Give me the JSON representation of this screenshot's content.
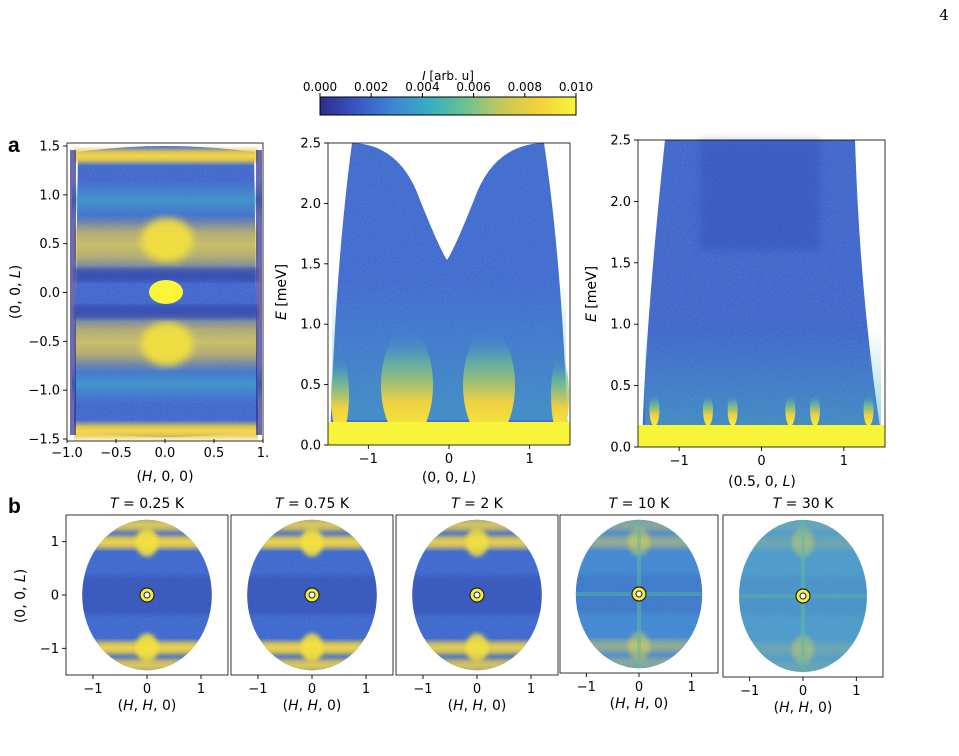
{
  "page_number": "4",
  "colorbar": {
    "label_var": "I",
    "label_rest": " [arb. u]",
    "ticks": [
      "0.000",
      "0.002",
      "0.004",
      "0.006",
      "0.008",
      "0.010"
    ],
    "range": [
      0,
      0.01
    ],
    "colormap": [
      "#2c2c8f",
      "#3a56c4",
      "#3d86d4",
      "#35aec2",
      "#6cc38e",
      "#c8c759",
      "#f2d23a",
      "#f8f43a"
    ]
  },
  "panel_labels": {
    "a": "a",
    "b": "b"
  },
  "chart_data": [
    {
      "type": "heatmap",
      "panel": "a-left",
      "xlabel": "(H, 0, 0)",
      "ylabel": "(0, 0, L)",
      "xlim": [
        -1.0,
        1.0
      ],
      "ylim": [
        -1.5,
        1.5
      ],
      "xticks": [
        "−1.0",
        "−0.5",
        "0.0",
        "0.5",
        "1."
      ],
      "yticks": [
        "1.5",
        "1.0",
        "0.5",
        "0.0",
        "−0.5",
        "−1.0",
        "−1.5"
      ],
      "features": [
        {
          "kind": "band",
          "L": 0.0,
          "H_center": 0.0,
          "intensity": 0.01
        },
        {
          "kind": "band",
          "L": 0.5,
          "intensity": 0.009
        },
        {
          "kind": "band",
          "L": -0.5,
          "intensity": 0.009
        },
        {
          "kind": "band",
          "L": 1.5,
          "intensity": 0.008
        },
        {
          "kind": "band",
          "L": -1.5,
          "intensity": 0.008
        },
        {
          "kind": "band",
          "L": 1.0,
          "intensity": 0.006
        },
        {
          "kind": "band",
          "L": -1.0,
          "intensity": 0.006
        }
      ]
    },
    {
      "type": "heatmap",
      "panel": "a-middle",
      "xlabel": "(0, 0, L)",
      "ylabel": "E [meV]",
      "xlim": [
        -1.5,
        1.5
      ],
      "ylim": [
        0.0,
        2.5
      ],
      "xticks": [
        "−1",
        "0",
        "1"
      ],
      "yticks": [
        "2.5",
        "2.0",
        "1.5",
        "1.0",
        "0.5",
        "0.0"
      ],
      "features": [
        {
          "kind": "dispersion_minimum",
          "L": 0.0,
          "E_min": 1.4
        },
        {
          "kind": "bright_low_energy",
          "L": -0.5,
          "E_max": 0.6
        },
        {
          "kind": "bright_low_energy",
          "L": 0.5,
          "E_max": 0.6
        },
        {
          "kind": "elastic_cutoff",
          "E": 0.18
        }
      ]
    },
    {
      "type": "heatmap",
      "panel": "a-right",
      "xlabel": "(0.5, 0, L)",
      "ylabel": "E [meV]",
      "xlim": [
        -1.5,
        1.5
      ],
      "ylim": [
        0.0,
        2.5
      ],
      "xticks": [
        "−1",
        "0",
        "1"
      ],
      "yticks": [
        "2.5",
        "2.0",
        "1.5",
        "1.0",
        "0.5",
        "0.0"
      ],
      "features": [
        {
          "kind": "elastic_cutoff",
          "E": 0.18
        },
        {
          "kind": "low_energy_spots",
          "L": [
            -1.3,
            -0.65,
            -0.35,
            0.35,
            0.65,
            1.3
          ]
        }
      ]
    },
    {
      "type": "heatmap",
      "panel": "b",
      "xlabel": "(H, H, 0)",
      "ylabel": "(0, 0, L)",
      "xlim": [
        -1.5,
        1.5
      ],
      "ylim": [
        -1.5,
        1.5
      ],
      "xticks": [
        "−1",
        "0",
        "1"
      ],
      "yticks": [
        "1",
        "0",
        "−1"
      ],
      "maps": [
        {
          "title_var": "T",
          "title_value": " = 0.25 K",
          "band_strength": 1.0
        },
        {
          "title_var": "T",
          "title_value": " = 0.75 K",
          "band_strength": 1.0
        },
        {
          "title_var": "T",
          "title_value": " = 2 K",
          "band_strength": 0.95
        },
        {
          "title_var": "T",
          "title_value": " = 10 K",
          "band_strength": 0.45
        },
        {
          "title_var": "T",
          "title_value": " = 30 K",
          "band_strength": 0.18
        }
      ]
    }
  ]
}
